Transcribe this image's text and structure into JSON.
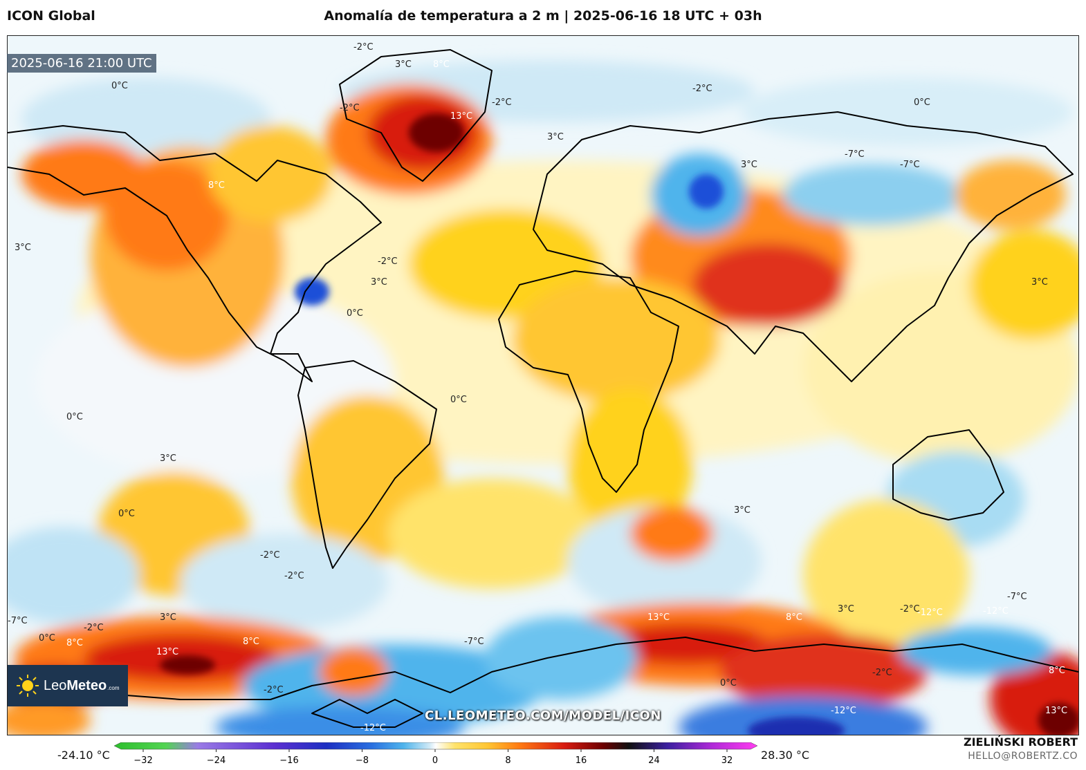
{
  "header": {
    "model": "ICON Global",
    "title": "Anomalía de temperatura a 2 m | 2025-06-16 18 UTC + 03h"
  },
  "map": {
    "valid_time": "2025-06-16 21:00 UTC",
    "watermark": "CL.LEOMETEO.COM/MODEL/ICON",
    "contour_labels": [
      "-2°C",
      "3°C",
      "8°C",
      "13°C",
      "-2°C",
      "0°C",
      "-2°C",
      "3°C",
      "8°C",
      "0°C",
      "3°C",
      "-7°C",
      "-7°C",
      "-2°C",
      "3°C",
      "3°C",
      "3°C",
      "-2°C",
      "0°C",
      "0°C",
      "0°C",
      "3°C",
      "0°C",
      "-2°C",
      "-2°C",
      "3°C",
      "-7°C",
      "13°C",
      "8°C",
      "3°C",
      "-2°C",
      "-12°C",
      "-12°C",
      "-12°C",
      "-7°C",
      "8°C",
      "-2°C",
      "0°C",
      "13°C",
      "8°C",
      "-2°C",
      "-7°C",
      "-12°C",
      "3°C",
      "0°C",
      "-2°C",
      "13°C",
      "8°C"
    ]
  },
  "logo": {
    "brand_light": "Leo",
    "brand_bold": "Meteo",
    "domain": ".com"
  },
  "colorbar": {
    "min_label": "-24.10 °C",
    "max_label": "28.30 °C",
    "ticks": [
      "−32",
      "−24",
      "−16",
      "−8",
      "0",
      "8",
      "16",
      "24",
      "32"
    ],
    "range": [
      -32,
      32
    ]
  },
  "footer": {
    "author": "ZIELIŃSKI ROBERT",
    "email": "HELLO@ROBERTZ.CO"
  },
  "colors": {
    "cold_strong": "#1f4fd8",
    "cold": "#4fb4ec",
    "cool": "#cfe9f6",
    "neutral": "#ffffff",
    "warm": "#ffd21a",
    "hot": "#ff7a12",
    "very_hot": "#d81b10",
    "extreme": "#6d0000"
  }
}
